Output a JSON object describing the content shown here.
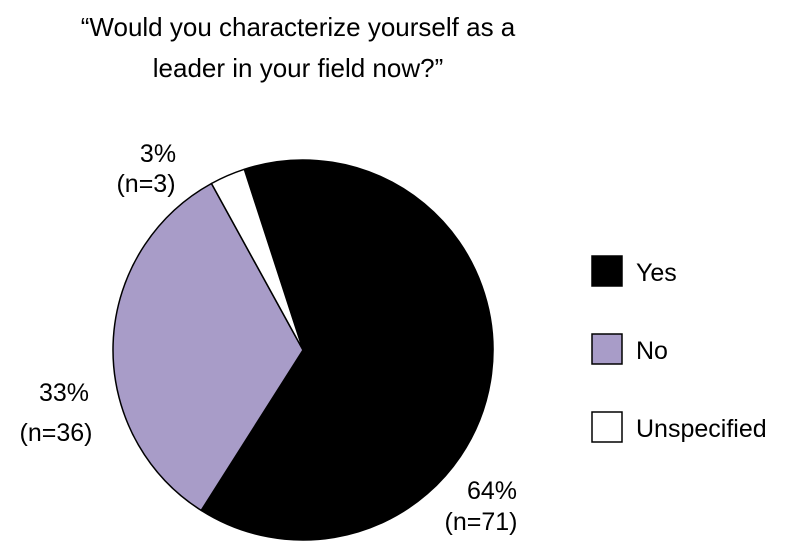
{
  "chart_data": {
    "type": "pie",
    "title_lines": [
      "“Would you characterize yourself as a",
      "leader in your field now?”"
    ],
    "slices": [
      {
        "name": "Yes",
        "value": 64,
        "n_label": "(n=71)",
        "pct_label": "64%",
        "color": "#000000"
      },
      {
        "name": "No",
        "value": 33,
        "n_label": "(n=36)",
        "pct_label": "33%",
        "color": "#a89cc8"
      },
      {
        "name": "Unspecified",
        "value": 3,
        "n_label": "(n=3)",
        "pct_label": "3%",
        "color": "#ffffff"
      }
    ],
    "legend": [
      {
        "label": "Yes",
        "color": "#000000"
      },
      {
        "label": "No",
        "color": "#a89cc8"
      },
      {
        "label": "Unspecified",
        "color": "#ffffff"
      }
    ],
    "legend_position": "right"
  }
}
